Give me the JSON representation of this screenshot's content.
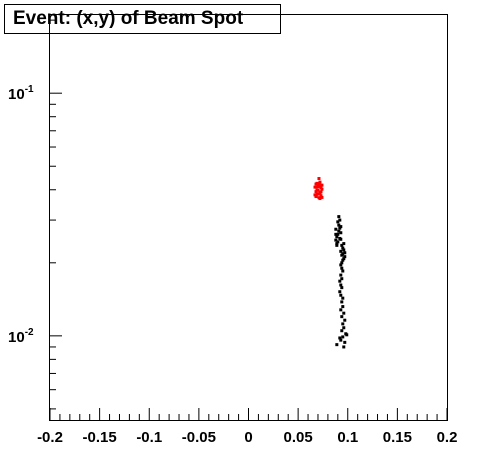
{
  "chart_data": {
    "type": "scatter",
    "title": "Event: (x,y) of Beam Spot",
    "xlabel": "",
    "ylabel": "",
    "xlim": [
      -0.2,
      0.2
    ],
    "ylim": [
      0.0045,
      0.21
    ],
    "y_scale": "log",
    "grid": false,
    "x_tick_labels": [
      "-0.2",
      "-0.15",
      "-0.1",
      "-0.05",
      "0",
      "0.05",
      "0.1",
      "0.15",
      "0.2"
    ],
    "y_tick_labels": [
      {
        "base": "10",
        "exp": "-2",
        "value": 0.01
      },
      {
        "base": "10",
        "exp": "-1",
        "value": 0.1
      }
    ],
    "series": [
      {
        "color": "#ff0000",
        "points": [
          [
            0.067,
            0.0381
          ],
          [
            0.068,
            0.0393
          ],
          [
            0.069,
            0.04
          ],
          [
            0.07,
            0.0412
          ],
          [
            0.071,
            0.042
          ],
          [
            0.072,
            0.0388
          ],
          [
            0.073,
            0.0378
          ],
          [
            0.074,
            0.0402
          ],
          [
            0.068,
            0.0375
          ],
          [
            0.07,
            0.0385
          ],
          [
            0.072,
            0.0415
          ],
          [
            0.069,
            0.0425
          ],
          [
            0.071,
            0.0371
          ],
          [
            0.073,
            0.0408
          ],
          [
            0.074,
            0.0418
          ],
          [
            0.067,
            0.041
          ],
          [
            0.07,
            0.0398
          ],
          [
            0.072,
            0.0368
          ],
          [
            0.068,
            0.0422
          ],
          [
            0.073,
            0.0392
          ],
          [
            0.071,
            0.0445
          ],
          [
            0.069,
            0.0383
          ],
          [
            0.074,
            0.0372
          ],
          [
            0.072,
            0.043
          ]
        ]
      },
      {
        "color": "#000000",
        "points": [
          [
            0.088,
            0.0248
          ],
          [
            0.089,
            0.0256
          ],
          [
            0.09,
            0.0262
          ],
          [
            0.091,
            0.027
          ],
          [
            0.092,
            0.0252
          ],
          [
            0.093,
            0.0266
          ],
          [
            0.088,
            0.0275
          ],
          [
            0.09,
            0.0244
          ],
          [
            0.092,
            0.0278
          ],
          [
            0.089,
            0.024
          ],
          [
            0.091,
            0.0286
          ],
          [
            0.093,
            0.025
          ],
          [
            0.09,
            0.0295
          ],
          [
            0.091,
            0.031
          ],
          [
            0.092,
            0.03
          ],
          [
            0.089,
            0.0236
          ],
          [
            0.093,
            0.0282
          ],
          [
            0.088,
            0.0262
          ],
          [
            0.093,
            0.0223
          ],
          [
            0.094,
            0.0215
          ],
          [
            0.095,
            0.023
          ],
          [
            0.096,
            0.0208
          ],
          [
            0.097,
            0.022
          ],
          [
            0.094,
            0.0236
          ],
          [
            0.095,
            0.0205
          ],
          [
            0.096,
            0.0226
          ],
          [
            0.097,
            0.0212
          ],
          [
            0.094,
            0.02
          ],
          [
            0.095,
            0.0218
          ],
          [
            0.096,
            0.024
          ],
          [
            0.093,
            0.0196
          ],
          [
            0.094,
            0.019
          ],
          [
            0.095,
            0.0185
          ],
          [
            0.093,
            0.0178
          ],
          [
            0.094,
            0.0172
          ],
          [
            0.092,
            0.0168
          ],
          [
            0.093,
            0.0162
          ],
          [
            0.094,
            0.0158
          ],
          [
            0.092,
            0.0152
          ],
          [
            0.093,
            0.0147
          ],
          [
            0.095,
            0.0143
          ],
          [
            0.094,
            0.0138
          ],
          [
            0.095,
            0.0132
          ],
          [
            0.093,
            0.0128
          ],
          [
            0.096,
            0.0124
          ],
          [
            0.094,
            0.012
          ],
          [
            0.097,
            0.0116
          ],
          [
            0.095,
            0.0112
          ],
          [
            0.096,
            0.0108
          ],
          [
            0.094,
            0.0105
          ],
          [
            0.098,
            0.0102
          ],
          [
            0.095,
            0.0099
          ],
          [
            0.093,
            0.0096
          ],
          [
            0.097,
            0.0094
          ],
          [
            0.089,
            0.0092
          ],
          [
            0.096,
            0.009
          ],
          [
            0.099,
            0.0101
          ],
          [
            0.092,
            0.0098
          ]
        ]
      }
    ]
  }
}
